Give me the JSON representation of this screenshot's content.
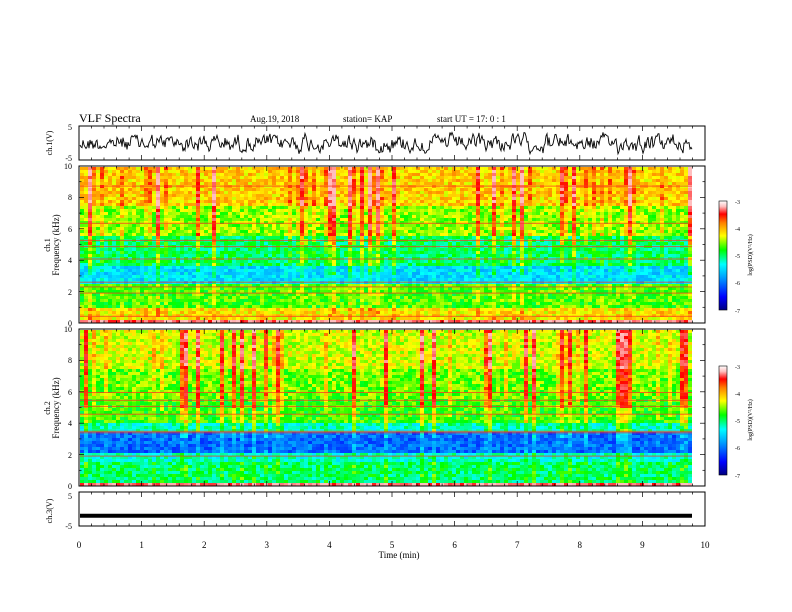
{
  "header": {
    "title": "VLF Spectra",
    "date": "Aug.19, 2018",
    "station": "station= KAP",
    "start": "start  UT  =   17: 0  : 1"
  },
  "colors": {
    "spectrum": [
      "#000080",
      "#0000ff",
      "#00a0ff",
      "#00ffff",
      "#00ff00",
      "#ffff00",
      "#ff8000",
      "#ff0000",
      "#ffc0c0",
      "#ffffff"
    ]
  },
  "chart_data": [
    {
      "type": "line",
      "id": "ch1",
      "ylabel": "ch.1(V)",
      "ylim": [
        -5,
        5
      ],
      "yticks": [
        "5",
        "-5"
      ]
    },
    {
      "type": "heatmap",
      "id": "spec1",
      "ylabel_top": "ch.1",
      "ylabel": "Frequency  (kHz)",
      "ylim": [
        0,
        10
      ],
      "yticks": [
        "0",
        "2",
        "4",
        "6",
        "8",
        "10"
      ],
      "colorbar": {
        "label": "log(PSD)(V²/Hz)",
        "ticks": [
          "-3",
          "-4",
          "-5",
          "-6",
          "-7"
        ],
        "range": [
          -7,
          -3
        ]
      }
    },
    {
      "type": "heatmap",
      "id": "spec2",
      "ylabel_top": "ch.2",
      "ylabel": "Frequency  (kHz)",
      "ylim": [
        0,
        10
      ],
      "yticks": [
        "0",
        "2",
        "4",
        "6",
        "8",
        "10"
      ],
      "colorbar": {
        "label": "log(PSD)(V²/Hz)",
        "ticks": [
          "-3",
          "-4",
          "-5",
          "-6",
          "-7"
        ],
        "range": [
          -7,
          -3
        ]
      }
    },
    {
      "type": "line",
      "id": "ch3",
      "ylabel": "ch.3(V)",
      "ylim": [
        -5,
        5
      ],
      "yticks": [
        "5",
        "-5"
      ],
      "values": [
        -2,
        -2
      ]
    }
  ],
  "xaxis": {
    "label": "Time  (min)",
    "xlim": [
      0,
      10
    ],
    "ticks": [
      "0",
      "1",
      "2",
      "3",
      "4",
      "5",
      "6",
      "7",
      "8",
      "9",
      "10"
    ]
  }
}
